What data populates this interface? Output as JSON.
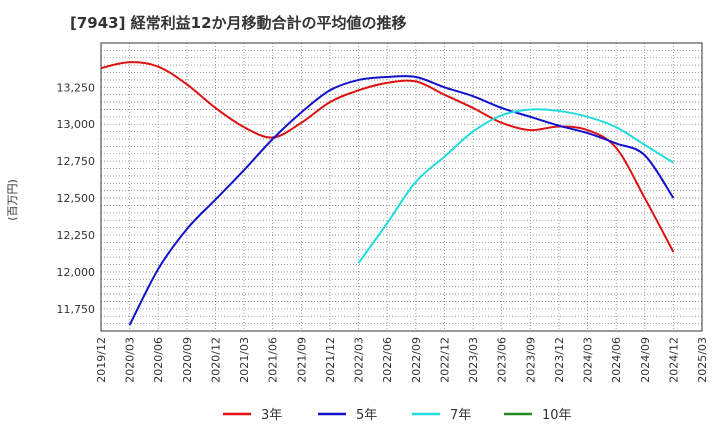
{
  "chart_data": {
    "type": "line",
    "title": "[7943]  経常利益12か月移動合計の平均値の推移",
    "ylabel": "(百万円)",
    "xlabel": "",
    "ylim": [
      11600,
      13550
    ],
    "yticks": [
      11750,
      12000,
      12250,
      12500,
      12750,
      13000,
      13250
    ],
    "ytick_labels": [
      "11,750",
      "12,000",
      "12,250",
      "12,500",
      "12,750",
      "13,000",
      "13,250"
    ],
    "x_categories": [
      "2019/12",
      "2020/03",
      "2020/06",
      "2020/09",
      "2020/12",
      "2021/03",
      "2021/06",
      "2021/09",
      "2021/12",
      "2022/03",
      "2022/06",
      "2022/09",
      "2022/12",
      "2023/03",
      "2023/06",
      "2023/09",
      "2023/12",
      "2024/03",
      "2024/06",
      "2024/09",
      "2024/12",
      "2025/03"
    ],
    "legend_position": "bottom",
    "grid": true,
    "series": [
      {
        "name": "3年",
        "color": "#dd1111",
        "start_index": 0,
        "values": [
          13380,
          13420,
          13390,
          13270,
          13110,
          12980,
          12910,
          13010,
          13150,
          13230,
          13280,
          13290,
          13200,
          13110,
          13010,
          12960,
          12985,
          12960,
          12840,
          12500,
          12135
        ]
      },
      {
        "name": "5年",
        "color": "#1111cc",
        "start_index": 1,
        "values": [
          11640,
          12020,
          12290,
          12490,
          12690,
          12900,
          13080,
          13230,
          13300,
          13320,
          13320,
          13250,
          13190,
          13110,
          13050,
          12990,
          12940,
          12870,
          12790,
          12500
        ]
      },
      {
        "name": "7年",
        "color": "#22dddd",
        "start_index": 9,
        "values": [
          12060,
          12330,
          12610,
          12780,
          12950,
          13060,
          13100,
          13090,
          13050,
          12980,
          12860,
          12740
        ]
      },
      {
        "name": "10年",
        "color": "#228822",
        "start_index": 0,
        "values": []
      }
    ]
  }
}
